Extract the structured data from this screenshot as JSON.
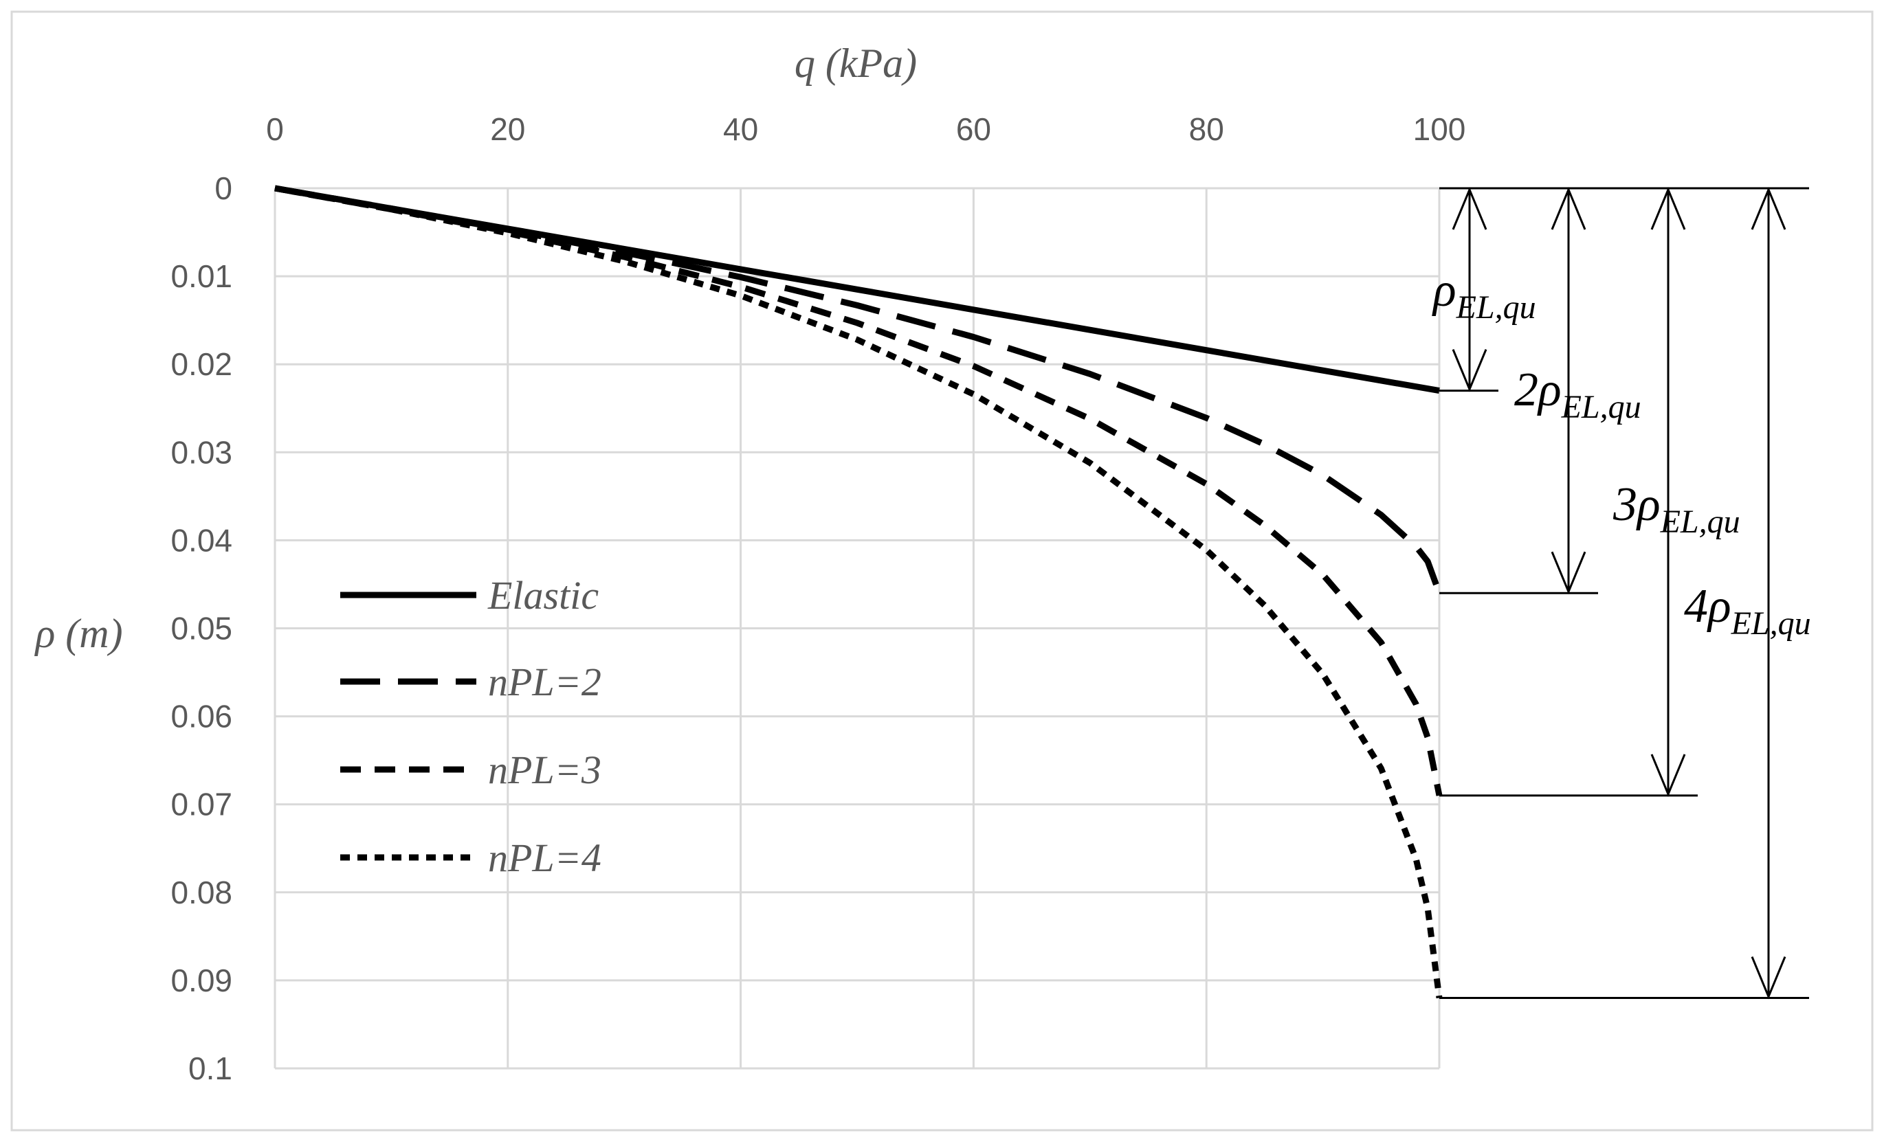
{
  "chart_data": {
    "type": "line",
    "xlabel": "q (kPa)",
    "ylabel": "ρ (m)",
    "xlim": [
      0,
      100
    ],
    "ylim": [
      0,
      0.1
    ],
    "y_inverted": true,
    "x_axis_position": "top",
    "grid": true,
    "legend_position": "left-middle",
    "x_ticks": [
      "0",
      "20",
      "40",
      "60",
      "80",
      "100"
    ],
    "y_ticks": [
      "0",
      "0.01",
      "0.02",
      "0.03",
      "0.04",
      "0.05",
      "0.06",
      "0.07",
      "0.08",
      "0.09",
      "0.1"
    ],
    "series": [
      {
        "name": "Elastic",
        "style": "solid",
        "points": [
          [
            0,
            0
          ],
          [
            10,
            0.0023
          ],
          [
            20,
            0.0046
          ],
          [
            30,
            0.0069
          ],
          [
            40,
            0.0092
          ],
          [
            50,
            0.0115
          ],
          [
            60,
            0.0138
          ],
          [
            70,
            0.0161
          ],
          [
            80,
            0.0184
          ],
          [
            90,
            0.0207
          ],
          [
            100,
            0.023
          ]
        ]
      },
      {
        "name": "nPL=2",
        "style": "long-dash",
        "points": [
          [
            0,
            0
          ],
          [
            10,
            0.0023
          ],
          [
            20,
            0.0047
          ],
          [
            30,
            0.0073
          ],
          [
            40,
            0.0101
          ],
          [
            50,
            0.0133
          ],
          [
            60,
            0.0169
          ],
          [
            70,
            0.0211
          ],
          [
            80,
            0.0261
          ],
          [
            85,
            0.0291
          ],
          [
            90,
            0.0326
          ],
          [
            95,
            0.0371
          ],
          [
            98,
            0.0407
          ],
          [
            99,
            0.0424
          ],
          [
            100,
            0.046
          ]
        ]
      },
      {
        "name": "nPL=3",
        "style": "short-dash",
        "points": [
          [
            0,
            0
          ],
          [
            10,
            0.0024
          ],
          [
            20,
            0.0049
          ],
          [
            30,
            0.0078
          ],
          [
            40,
            0.0112
          ],
          [
            50,
            0.0153
          ],
          [
            60,
            0.0202
          ],
          [
            70,
            0.0262
          ],
          [
            80,
            0.0336
          ],
          [
            85,
            0.0383
          ],
          [
            90,
            0.0439
          ],
          [
            95,
            0.0516
          ],
          [
            98,
            0.0586
          ],
          [
            99,
            0.0624
          ],
          [
            100,
            0.069
          ]
        ]
      },
      {
        "name": "nPL=4",
        "style": "dotted",
        "points": [
          [
            0,
            0
          ],
          [
            10,
            0.0024
          ],
          [
            20,
            0.0051
          ],
          [
            30,
            0.0083
          ],
          [
            40,
            0.0122
          ],
          [
            50,
            0.0172
          ],
          [
            60,
            0.0234
          ],
          [
            70,
            0.0312
          ],
          [
            80,
            0.0411
          ],
          [
            85,
            0.0474
          ],
          [
            90,
            0.0552
          ],
          [
            95,
            0.0659
          ],
          [
            98,
            0.0762
          ],
          [
            99,
            0.0818
          ],
          [
            100,
            0.092
          ]
        ]
      }
    ],
    "reference_levels": [
      {
        "value": 0.023,
        "label_main": "ρ",
        "label_sub": "EL,qu"
      },
      {
        "value": 0.046,
        "label_main": "2ρ",
        "label_sub": "EL,qu"
      },
      {
        "value": 0.069,
        "label_main": "3ρ",
        "label_sub": "EL,qu"
      },
      {
        "value": 0.092,
        "label_main": "4ρ",
        "label_sub": "EL,qu"
      }
    ]
  }
}
